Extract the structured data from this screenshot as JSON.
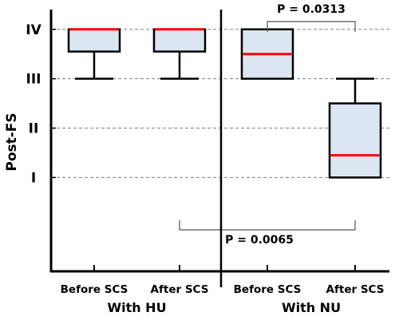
{
  "chart_data": {
    "type": "box",
    "ylabel": "Post-FS",
    "ylim": [
      -0.9,
      4.4
    ],
    "yticks": [
      {
        "value": 1,
        "label": "I"
      },
      {
        "value": 2,
        "label": "II"
      },
      {
        "value": 3,
        "label": "III"
      },
      {
        "value": 4,
        "label": "IV"
      }
    ],
    "grid": "dashed horizontal at each tick",
    "groups": [
      {
        "label": "With HU",
        "categories": [
          "Before SCS",
          "After SCS"
        ]
      },
      {
        "label": "With NU",
        "categories": [
          "Before SCS",
          "After SCS"
        ]
      }
    ],
    "boxes": [
      {
        "group": "With HU",
        "category": "Before SCS",
        "whisker_low": 3,
        "q1": 3.55,
        "median": 4,
        "q3": 4,
        "whisker_high": 4
      },
      {
        "group": "With HU",
        "category": "After SCS",
        "whisker_low": 3,
        "q1": 3.55,
        "median": 4,
        "q3": 4,
        "whisker_high": 4
      },
      {
        "group": "With NU",
        "category": "Before SCS",
        "whisker_low": 3,
        "q1": 3,
        "median": 3.5,
        "q3": 4,
        "whisker_high": 4
      },
      {
        "group": "With NU",
        "category": "After SCS",
        "whisker_low": 1,
        "q1": 1,
        "median": 1.45,
        "q3": 2.5,
        "whisker_high": 3
      }
    ],
    "annotations": [
      {
        "text": "P = 0.0313",
        "between": [
          "With NU / Before SCS",
          "With NU / After SCS"
        ]
      },
      {
        "text": "P = 0.0065",
        "between": [
          "With HU / After SCS",
          "With NU / After SCS"
        ]
      }
    ],
    "colors": {
      "box_fill": "#dce6f2",
      "median": "#ff0000",
      "outline": "#000000",
      "grid": "#808080"
    }
  }
}
